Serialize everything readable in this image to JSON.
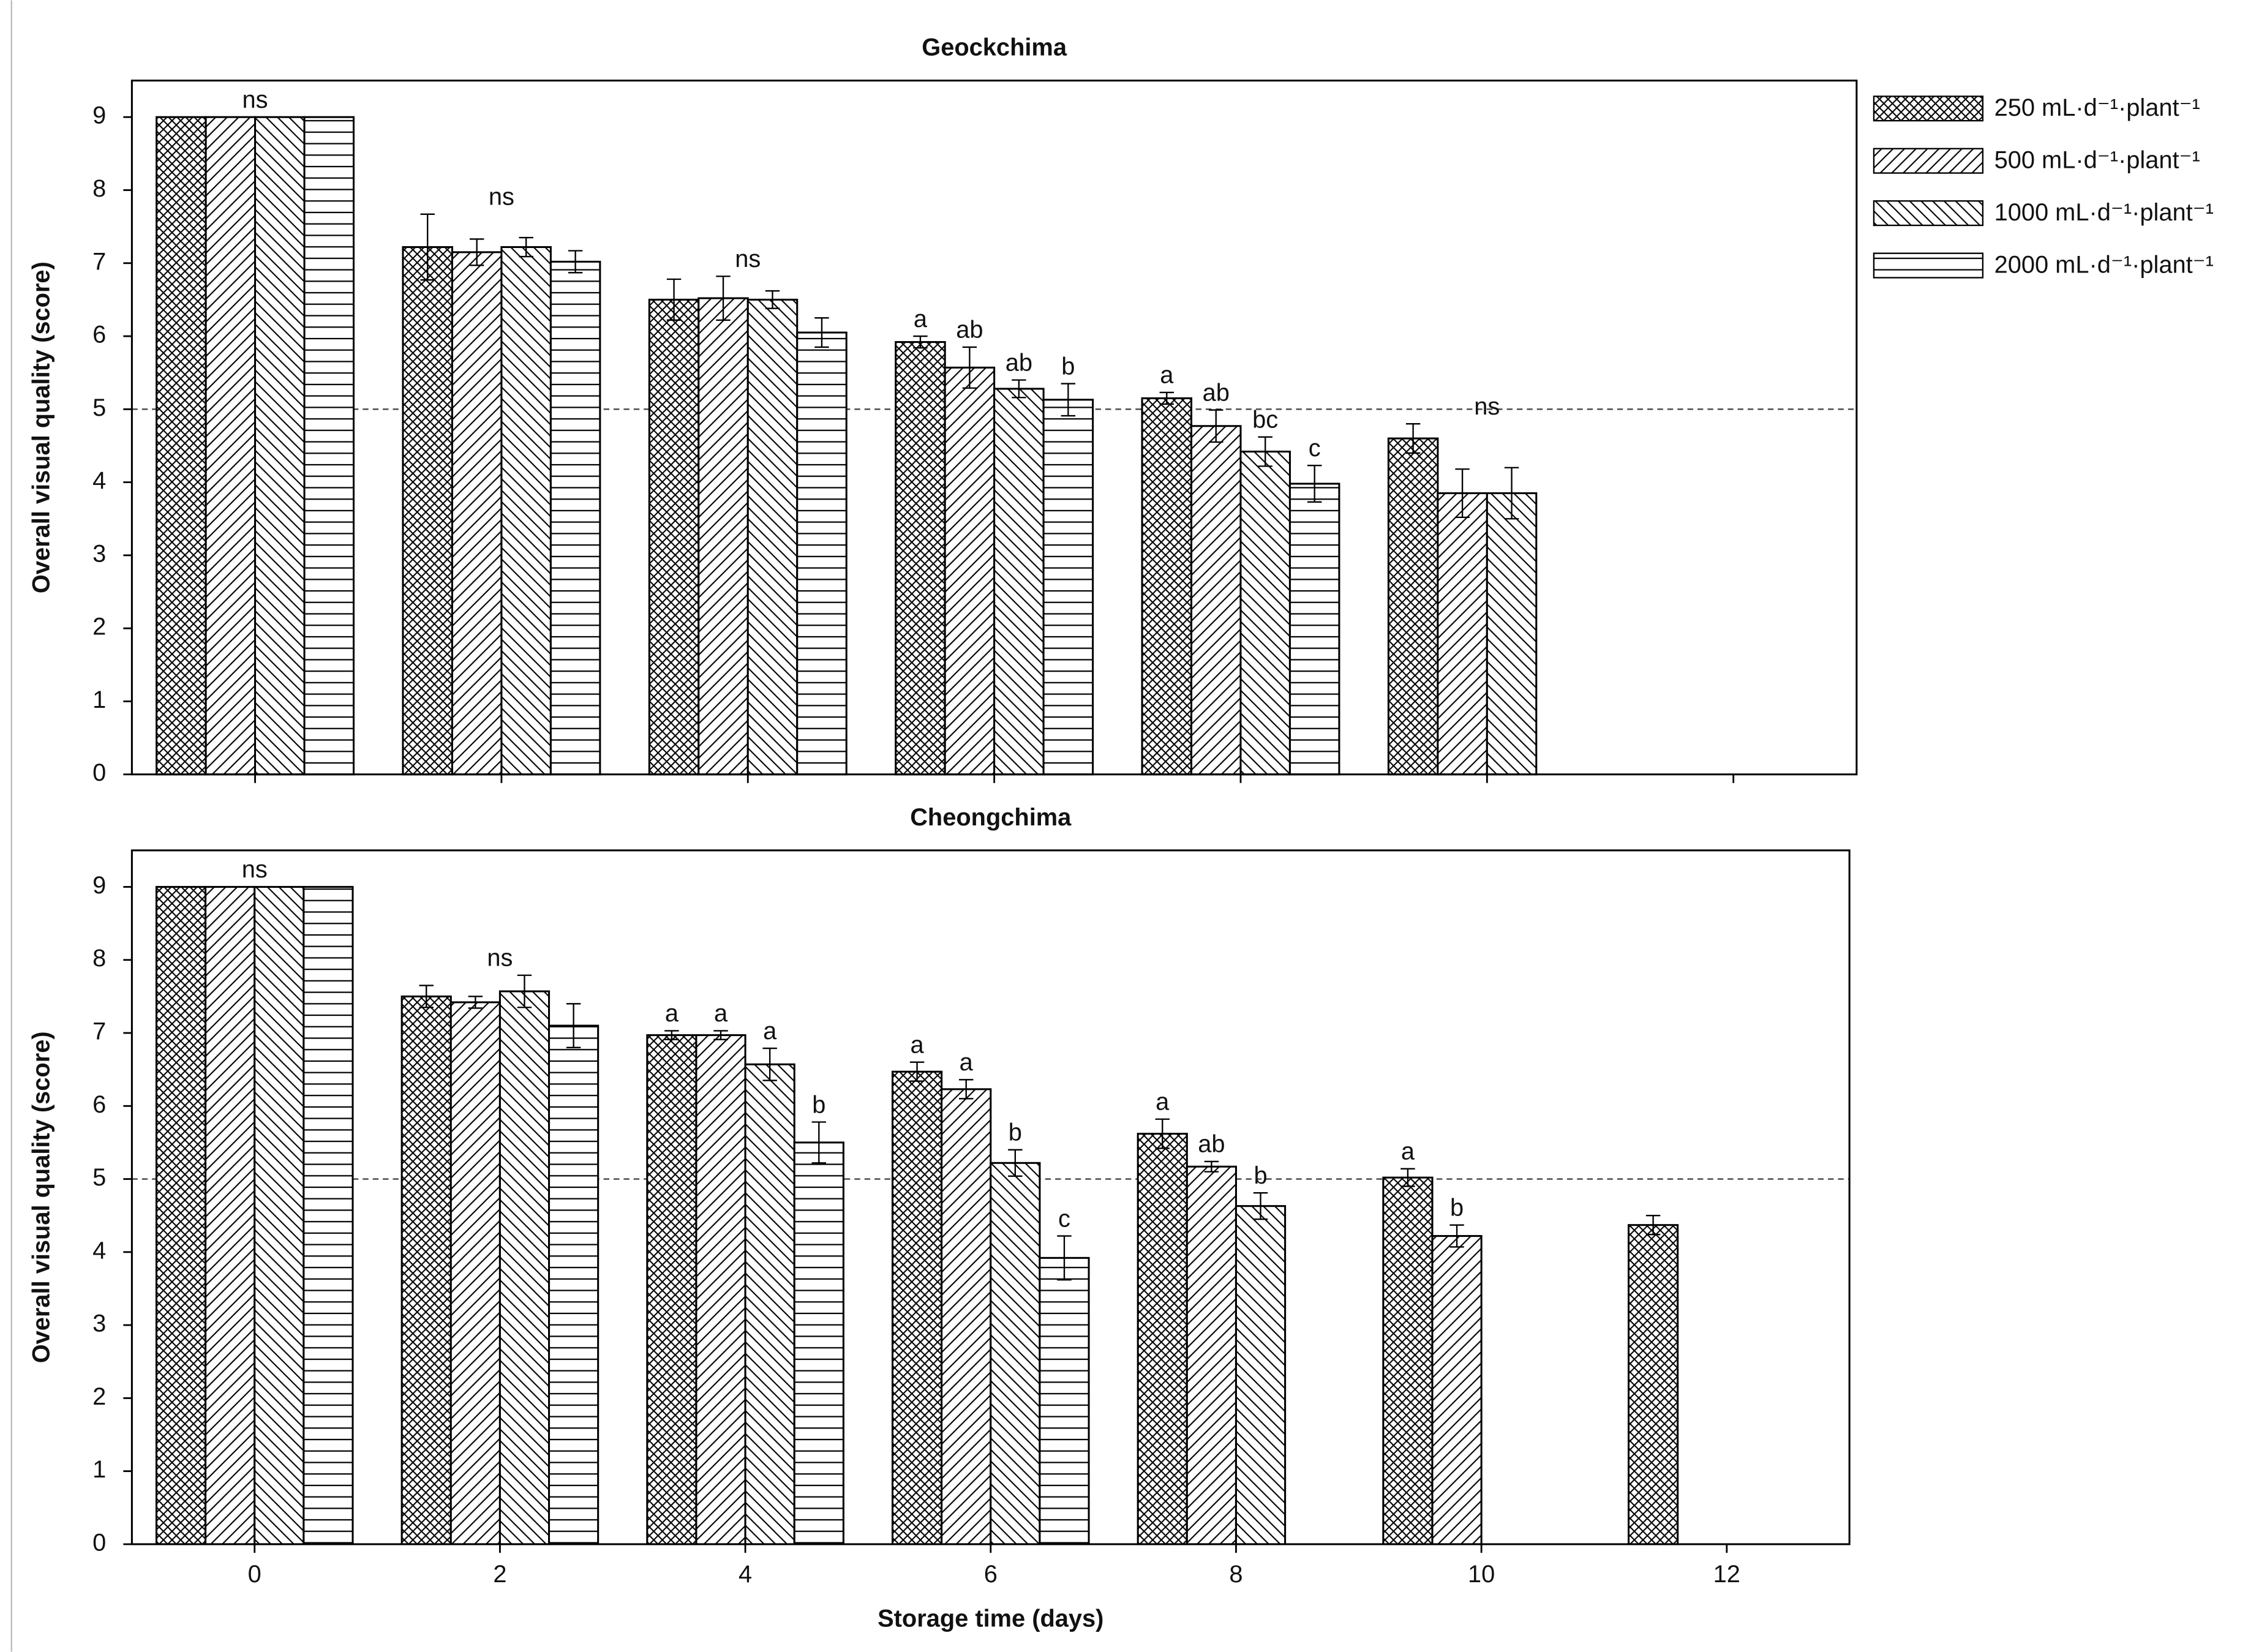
{
  "chart_data": [
    {
      "type": "bar",
      "title": "Geockchima",
      "ylabel": "Overall visual quality (score)",
      "x": [
        0,
        2,
        4,
        6,
        8,
        10,
        12
      ],
      "xlim": [
        -1,
        13
      ],
      "xticks": [
        0,
        2,
        4,
        6,
        8,
        10,
        12
      ],
      "show_xtick_labels": false,
      "ylim": [
        0,
        9.5
      ],
      "yticks": [
        0,
        1,
        2,
        3,
        4,
        5,
        6,
        7,
        8,
        9
      ],
      "reference_line": 5,
      "legend": "right",
      "group_labels": [
        "ns",
        "ns",
        "ns",
        null,
        null,
        "ns",
        null
      ],
      "series": [
        {
          "name": "250 mL·d⁻¹·plant⁻¹",
          "color": "#000000",
          "pattern": "crosshatch",
          "values": [
            9,
            7.22,
            6.5,
            5.92,
            5.15,
            4.6,
            null
          ],
          "errors": [
            0,
            0.45,
            0.28,
            0.08,
            0.08,
            0.2,
            null
          ],
          "letters": [
            null,
            null,
            null,
            "a",
            "a",
            null,
            null
          ]
        },
        {
          "name": "500 mL·d⁻¹·plant⁻¹",
          "color": "#000000",
          "pattern": "forward",
          "values": [
            9,
            7.15,
            6.52,
            5.57,
            4.77,
            3.85,
            null
          ],
          "errors": [
            0,
            0.18,
            0.3,
            0.28,
            0.22,
            0.33,
            null
          ],
          "letters": [
            null,
            null,
            null,
            "ab",
            "ab",
            null,
            null
          ]
        },
        {
          "name": "1000 mL·d⁻¹·plant⁻¹",
          "color": "#000000",
          "pattern": "back",
          "values": [
            9,
            7.22,
            6.5,
            5.28,
            4.42,
            3.85,
            null
          ],
          "errors": [
            0,
            0.13,
            0.12,
            0.12,
            0.2,
            0.35,
            null
          ],
          "letters": [
            null,
            null,
            null,
            "ab",
            "bc",
            null,
            null
          ]
        },
        {
          "name": "2000 mL·d⁻¹·plant⁻¹",
          "color": "#000000",
          "pattern": "horizontal",
          "values": [
            9,
            7.02,
            6.05,
            5.13,
            3.98,
            null,
            null
          ],
          "errors": [
            0,
            0.15,
            0.2,
            0.22,
            0.25,
            null,
            null
          ],
          "letters": [
            null,
            null,
            null,
            "b",
            "c",
            null,
            null
          ]
        }
      ]
    },
    {
      "type": "bar",
      "title": "Cheongchima",
      "ylabel": "Overall visual quality (score)",
      "xlabel": "Storage time (days)",
      "x": [
        0,
        2,
        4,
        6,
        8,
        10,
        12
      ],
      "xlim": [
        -1,
        13
      ],
      "xticks": [
        0,
        2,
        4,
        6,
        8,
        10,
        12
      ],
      "show_xtick_labels": true,
      "ylim": [
        0,
        9.5
      ],
      "yticks": [
        0,
        1,
        2,
        3,
        4,
        5,
        6,
        7,
        8,
        9
      ],
      "reference_line": 5,
      "group_labels": [
        "ns",
        "ns",
        null,
        null,
        null,
        null,
        null
      ],
      "series": [
        {
          "color": "#000000",
          "pattern": "crosshatch",
          "values": [
            9,
            7.5,
            6.97,
            6.47,
            5.62,
            5.02,
            4.37
          ],
          "errors": [
            0,
            0.15,
            0.06,
            0.13,
            0.2,
            0.12,
            0.13
          ],
          "letters": [
            null,
            null,
            "a",
            "a",
            "a",
            "a",
            null
          ]
        },
        {
          "color": "#000000",
          "pattern": "forward",
          "values": [
            9,
            7.42,
            6.97,
            6.23,
            5.17,
            4.22,
            null
          ],
          "errors": [
            0,
            0.08,
            0.06,
            0.13,
            0.07,
            0.15,
            null
          ],
          "letters": [
            null,
            null,
            "a",
            "a",
            "ab",
            "b",
            null
          ]
        },
        {
          "color": "#000000",
          "pattern": "back",
          "values": [
            9,
            7.57,
            6.57,
            5.22,
            4.63,
            null,
            null
          ],
          "errors": [
            0,
            0.22,
            0.22,
            0.18,
            0.18,
            null,
            null
          ],
          "letters": [
            null,
            null,
            "a",
            "b",
            "b",
            null,
            null
          ]
        },
        {
          "color": "#000000",
          "pattern": "horizontal",
          "values": [
            9,
            7.1,
            5.5,
            3.92,
            null,
            null,
            null
          ],
          "errors": [
            0,
            0.3,
            0.28,
            0.3,
            null,
            null,
            null
          ],
          "letters": [
            null,
            null,
            "b",
            "c",
            null,
            null,
            null
          ]
        }
      ]
    }
  ]
}
